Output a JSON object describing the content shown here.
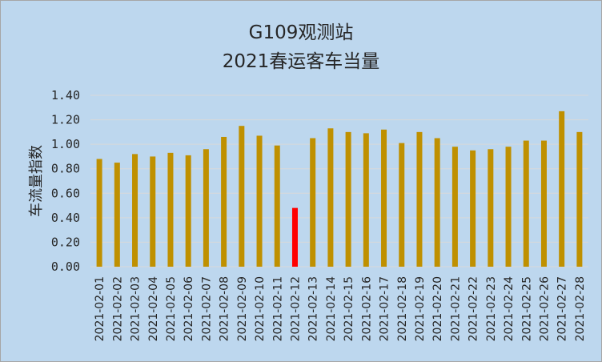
{
  "chart_data": {
    "type": "bar",
    "title": "G109观测站",
    "subtitle": "2021春运客车当量",
    "xlabel": "",
    "ylabel": "车流量指数",
    "ylim": [
      0,
      1.4
    ],
    "ytick_step": 0.2,
    "y_tick_labels": [
      "0.00",
      "0.20",
      "0.40",
      "0.60",
      "0.80",
      "1.00",
      "1.20",
      "1.40"
    ],
    "grid": true,
    "legend": "none",
    "categories": [
      "2021-02-01",
      "2021-02-02",
      "2021-02-03",
      "2021-02-04",
      "2021-02-05",
      "2021-02-06",
      "2021-02-07",
      "2021-02-08",
      "2021-02-09",
      "2021-02-10",
      "2021-02-11",
      "2021-02-12",
      "2021-02-13",
      "2021-02-14",
      "2021-02-15",
      "2021-02-16",
      "2021-02-17",
      "2021-02-18",
      "2021-02-19",
      "2021-02-20",
      "2021-02-21",
      "2021-02-22",
      "2021-02-23",
      "2021-02-24",
      "2021-02-25",
      "2021-02-26",
      "2021-02-27",
      "2021-02-28"
    ],
    "values": [
      0.88,
      0.85,
      0.92,
      0.9,
      0.93,
      0.91,
      0.96,
      1.06,
      1.15,
      1.07,
      0.99,
      0.48,
      1.05,
      1.13,
      1.1,
      1.09,
      1.12,
      1.01,
      1.1,
      1.05,
      0.98,
      0.95,
      0.96,
      0.98,
      1.03,
      1.03,
      1.27,
      1.1
    ],
    "highlight_index": 11,
    "colors": {
      "bar": "#bf9000",
      "highlight": "#ff0000",
      "grid": "#d9d9d9",
      "text": "#262626",
      "background": "#bdd7ee"
    }
  }
}
